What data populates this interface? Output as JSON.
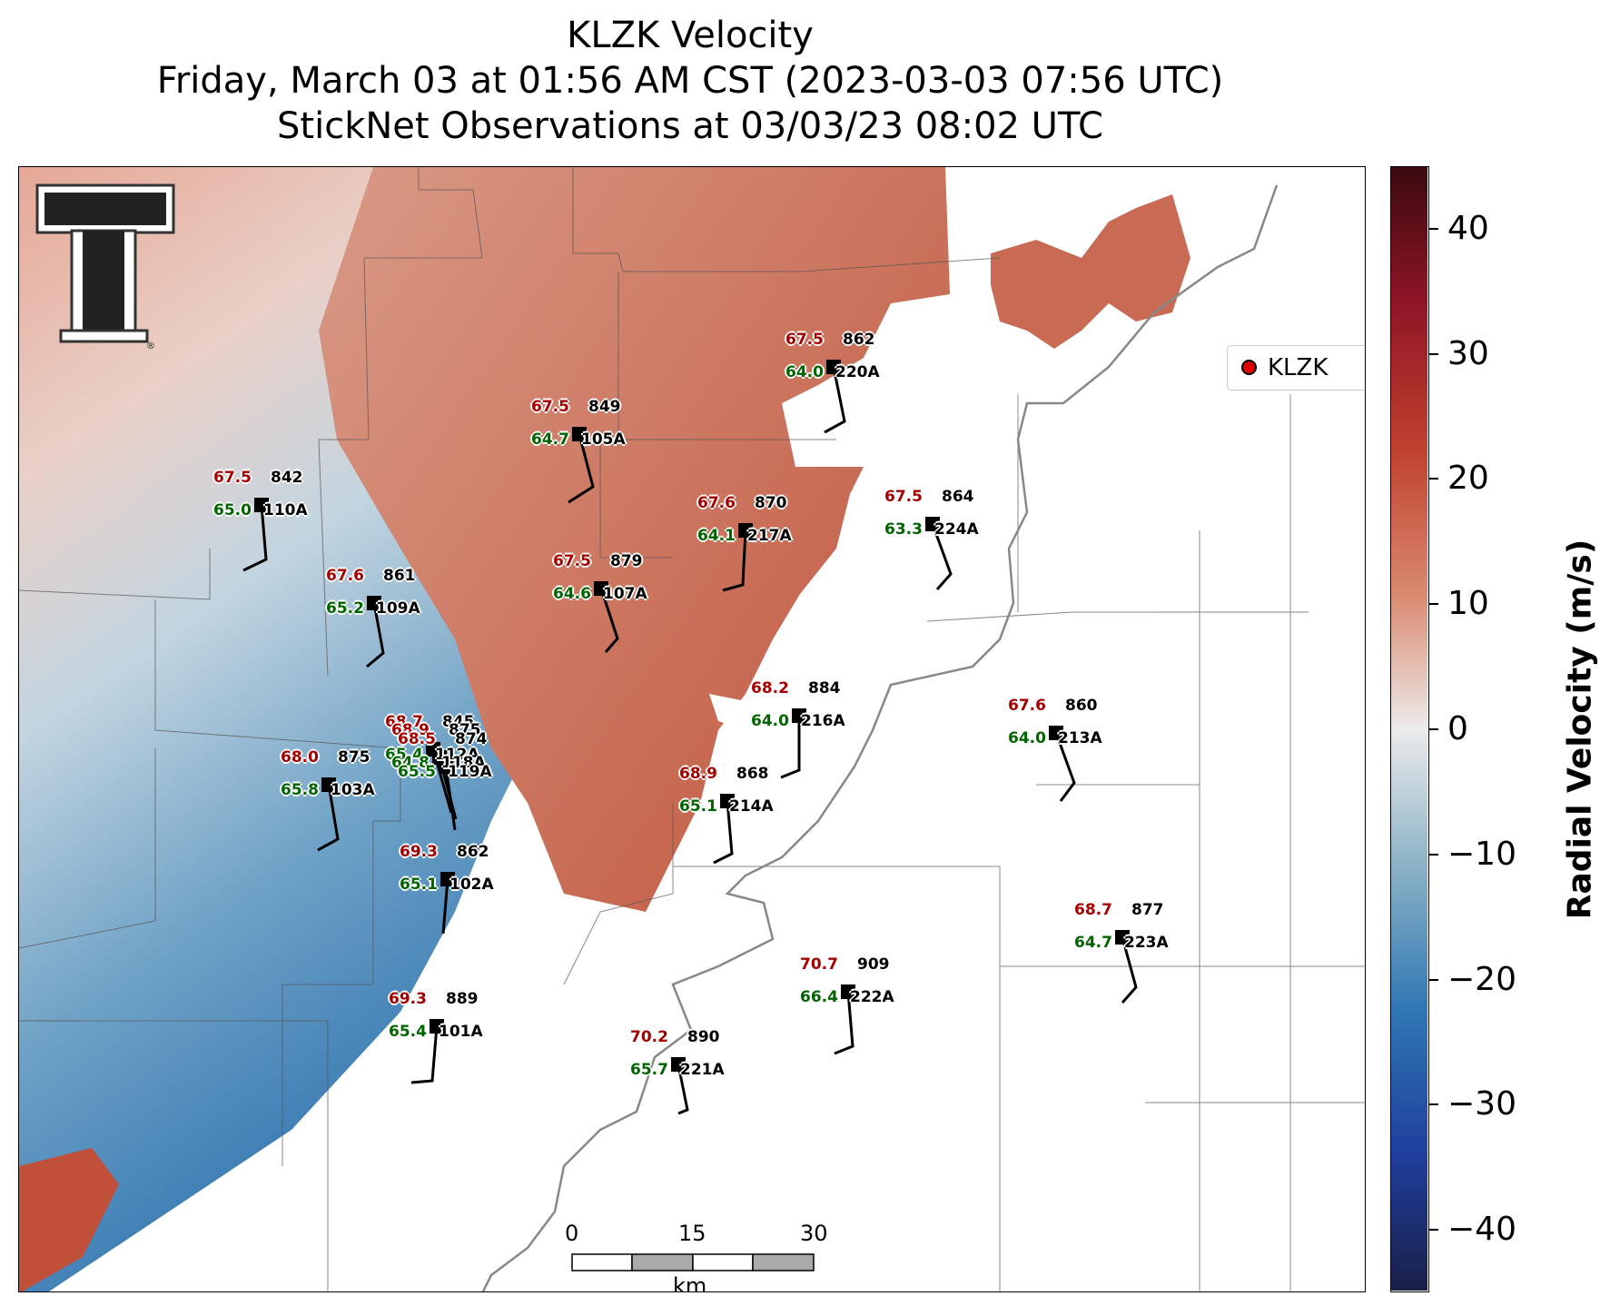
{
  "title": {
    "line1": "KLZK Velocity",
    "line2": "Friday, March 03 at 01:56 AM CST (2023-03-03 07:56 UTC)",
    "line3": "StickNet Observations at 03/03/23 08:02 UTC"
  },
  "legend": {
    "label": "KLZK",
    "marker_color": "#e00000"
  },
  "colorbar": {
    "label": "Radial Velocity (m/s)",
    "ticks": [
      "40",
      "30",
      "20",
      "10",
      "0",
      "−10",
      "−20",
      "−30",
      "−40"
    ],
    "tick_values": [
      40,
      30,
      20,
      10,
      0,
      -10,
      -20,
      -30,
      -40
    ],
    "range": [
      -45,
      45
    ]
  },
  "scale_bar": {
    "labels": [
      "0",
      "15",
      "30"
    ],
    "unit": "km"
  },
  "logo": {
    "name": "texas-tech-double-t-logo",
    "mark": "®"
  },
  "colors": {
    "temperature": "#a40000",
    "dewpoint": "#006400",
    "inbound": "#2a6fb0",
    "outbound": "#c25a42"
  },
  "stations": [
    {
      "id": "220A",
      "temp": "67.5",
      "dew": "64.0",
      "pressure": "862"
    },
    {
      "id": "105A",
      "temp": "67.5",
      "dew": "64.7",
      "pressure": "849"
    },
    {
      "id": "110A",
      "temp": "67.5",
      "dew": "65.0",
      "pressure": "842"
    },
    {
      "id": "217A",
      "temp": "67.6",
      "dew": "64.1",
      "pressure": "870"
    },
    {
      "id": "224A",
      "temp": "67.5",
      "dew": "63.3",
      "pressure": "864"
    },
    {
      "id": "107A",
      "temp": "67.5",
      "dew": "64.6",
      "pressure": "879"
    },
    {
      "id": "109A",
      "temp": "67.6",
      "dew": "65.2",
      "pressure": "861"
    },
    {
      "id": "216A",
      "temp": "68.2",
      "dew": "64.0",
      "pressure": "884"
    },
    {
      "id": "213A",
      "temp": "67.6",
      "dew": "64.0",
      "pressure": "860"
    },
    {
      "id": "112A",
      "temp": "68.7",
      "dew": "65.4",
      "pressure": "845"
    },
    {
      "id": "118A",
      "temp": "68.9",
      "dew": "64.8",
      "pressure": "875"
    },
    {
      "id": "119A",
      "temp": "68.5",
      "dew": "65.5",
      "pressure": "874"
    },
    {
      "id": "103A",
      "temp": "68.0",
      "dew": "65.8",
      "pressure": "875"
    },
    {
      "id": "214A",
      "temp": "68.9",
      "dew": "65.1",
      "pressure": "868"
    },
    {
      "id": "102A",
      "temp": "69.3",
      "dew": "65.1",
      "pressure": "862"
    },
    {
      "id": "223A",
      "temp": "68.7",
      "dew": "64.7",
      "pressure": "877"
    },
    {
      "id": "222A",
      "temp": "70.7",
      "dew": "66.4",
      "pressure": "909"
    },
    {
      "id": "101A",
      "temp": "69.3",
      "dew": "65.4",
      "pressure": "889"
    },
    {
      "id": "221A",
      "temp": "70.2",
      "dew": "65.7",
      "pressure": "890"
    }
  ]
}
